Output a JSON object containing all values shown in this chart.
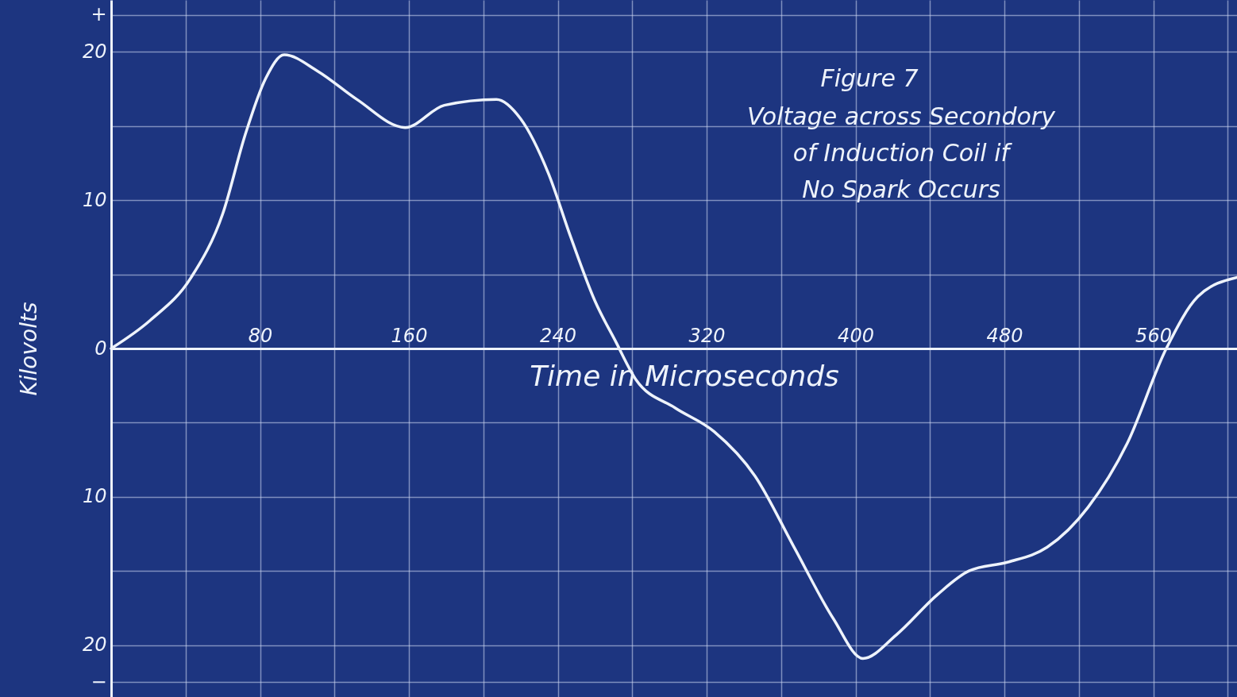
{
  "chart_data": {
    "type": "line",
    "title": "Figure 7",
    "subtitle": "Voltage across Secondory\nof Induction Coil if\nNo Spark Occurs",
    "xlabel": "Time in Microseconds",
    "ylabel": "Kilovolts",
    "x": [
      0,
      21,
      43,
      60,
      72,
      83,
      93,
      111,
      132,
      158,
      179,
      207,
      220,
      235,
      247,
      260,
      271,
      282,
      303,
      324,
      346,
      367,
      388,
      404,
      422,
      444,
      461,
      482,
      503,
      525,
      546,
      567,
      584,
      605
    ],
    "series": [
      {
        "color": "#eef3fb",
        "values": [
          0,
          1.9,
          4.8,
          9.1,
          14.4,
          18.2,
          19.8,
          18.7,
          16.8,
          14.9,
          16.4,
          16.8,
          15.5,
          11.8,
          7.5,
          3.2,
          0.5,
          -2.1,
          -4.0,
          -5.6,
          -8.6,
          -13.4,
          -18.2,
          -20.9,
          -19.3,
          -16.6,
          -15.0,
          -14.4,
          -13.4,
          -10.7,
          -6.4,
          0,
          3.5,
          4.8
        ]
      }
    ],
    "xlim": [
      0,
      605
    ],
    "ylim": [
      -23.5,
      23.5
    ],
    "xticks": [
      {
        "value": 40,
        "label": null
      },
      80,
      {
        "value": 120,
        "label": null
      },
      160,
      {
        "value": 200,
        "label": null
      },
      240,
      {
        "value": 280,
        "label": null
      },
      320,
      {
        "value": 360,
        "label": null
      },
      400,
      {
        "value": 440,
        "label": null
      },
      480,
      {
        "value": 520,
        "label": null
      },
      560,
      {
        "value": 600,
        "label": null
      }
    ],
    "yticks": [
      {
        "value": -22.5,
        "label": "−"
      },
      {
        "value": -20,
        "label": "20"
      },
      {
        "value": -15,
        "label": null
      },
      {
        "value": -10,
        "label": "10"
      },
      {
        "value": -5,
        "label": null
      },
      0,
      {
        "value": 5,
        "label": null
      },
      {
        "value": 10,
        "label": "10"
      },
      {
        "value": 15,
        "label": null
      },
      {
        "value": 20,
        "label": "20"
      },
      {
        "value": 22.5,
        "label": "+"
      }
    ],
    "grid": true
  }
}
